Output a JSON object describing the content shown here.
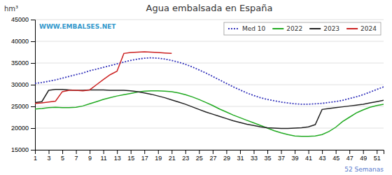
{
  "chart_data": {
    "type": "line",
    "title": "Agua embalsada en España",
    "ylabel": "hm³",
    "annotations": [
      "WWW.EMBALSES.NET",
      "52 Semanas"
    ],
    "x": [
      1,
      2,
      3,
      4,
      5,
      6,
      7,
      8,
      9,
      10,
      11,
      12,
      13,
      14,
      15,
      16,
      17,
      18,
      19,
      20,
      21,
      22,
      23,
      24,
      25,
      26,
      27,
      28,
      29,
      30,
      31,
      32,
      33,
      34,
      35,
      36,
      37,
      38,
      39,
      40,
      41,
      42,
      43,
      44,
      45,
      46,
      47,
      48,
      49,
      50,
      51,
      52
    ],
    "xlim": [
      1,
      52
    ],
    "xticks": [
      1,
      3,
      5,
      7,
      9,
      11,
      13,
      15,
      17,
      19,
      21,
      23,
      25,
      27,
      29,
      31,
      33,
      35,
      37,
      39,
      41,
      43,
      45,
      47,
      49,
      51
    ],
    "ylim": [
      15000,
      45000
    ],
    "yticks": [
      15000,
      20000,
      25000,
      30000,
      35000,
      40000,
      45000
    ],
    "grid": "y",
    "legend": "upper right",
    "series": [
      {
        "name": "Med 10",
        "color": "#3333bb",
        "line_style": "dotted",
        "values": [
          30300,
          30500,
          30800,
          31100,
          31500,
          31900,
          32300,
          32700,
          33200,
          33600,
          34000,
          34400,
          34800,
          35200,
          35600,
          35900,
          36100,
          36200,
          36100,
          35900,
          35600,
          35200,
          34700,
          34100,
          33400,
          32700,
          31900,
          31100,
          30300,
          29500,
          28800,
          28100,
          27500,
          27000,
          26600,
          26300,
          26000,
          25800,
          25600,
          25500,
          25500,
          25600,
          25700,
          25900,
          26100,
          26400,
          26800,
          27200,
          27700,
          28300,
          28900,
          29500
        ]
      },
      {
        "name": "2022",
        "color": "#22aa22",
        "line_style": "solid",
        "values": [
          24400,
          24500,
          24700,
          24800,
          24700,
          24700,
          24800,
          25100,
          25600,
          26100,
          26600,
          27000,
          27400,
          27700,
          28000,
          28300,
          28500,
          28600,
          28600,
          28500,
          28400,
          28100,
          27700,
          27200,
          26600,
          25900,
          25200,
          24400,
          23700,
          23000,
          22400,
          21800,
          21200,
          20600,
          20000,
          19400,
          18900,
          18500,
          18200,
          18100,
          18100,
          18200,
          18500,
          19200,
          20200,
          21500,
          22500,
          23500,
          24200,
          24800,
          25200,
          25500
        ]
      },
      {
        "name": "2023",
        "color": "#222222",
        "line_style": "solid",
        "values": [
          25900,
          26100,
          28700,
          28900,
          28900,
          28800,
          28700,
          28700,
          28800,
          28800,
          28800,
          28700,
          28700,
          28700,
          28600,
          28400,
          28100,
          27800,
          27400,
          27000,
          26500,
          26000,
          25500,
          24900,
          24300,
          23700,
          23200,
          22700,
          22200,
          21700,
          21300,
          20900,
          20600,
          20300,
          20100,
          20000,
          19900,
          19900,
          20000,
          20100,
          20300,
          20800,
          24300,
          24500,
          24700,
          24900,
          25100,
          25300,
          25500,
          25800,
          26100,
          26400
        ]
      },
      {
        "name": "2024",
        "color": "#cc2222",
        "line_style": "solid",
        "values": [
          25700,
          25800,
          26000,
          26200,
          28400,
          28700,
          28700,
          28600,
          28800,
          30000,
          31200,
          32300,
          33100,
          37200,
          37400,
          37500,
          37600,
          37500,
          37400,
          37300,
          37200,
          null,
          null,
          null,
          null,
          null,
          null,
          null,
          null,
          null,
          null,
          null,
          null,
          null,
          null,
          null,
          null,
          null,
          null,
          null,
          null,
          null,
          null,
          null,
          null,
          null,
          null,
          null,
          null,
          null,
          null,
          null
        ]
      }
    ]
  }
}
